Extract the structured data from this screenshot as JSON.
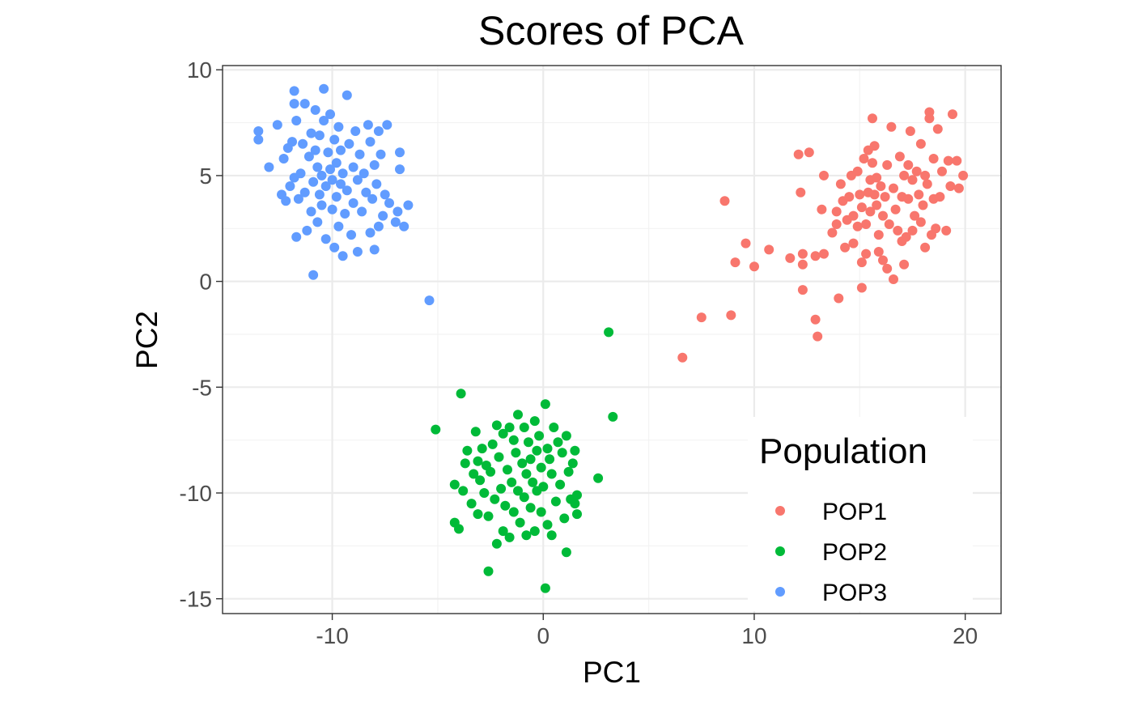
{
  "chart_data": {
    "type": "scatter",
    "title": "Scores of PCA",
    "xlabel": "PC1",
    "ylabel": "PC2",
    "xlim": [
      -15.2,
      21.7
    ],
    "ylim": [
      -15.7,
      10.2
    ],
    "x_ticks": [
      -10,
      0,
      10,
      20
    ],
    "x_tick_labels": [
      "-10",
      "0",
      "10",
      "20"
    ],
    "y_ticks": [
      10,
      5,
      0,
      -5,
      -10,
      -15
    ],
    "y_tick_labels": [
      "10",
      "5",
      "0",
      "-5",
      "-10",
      "-15"
    ],
    "grid": true,
    "legend": {
      "title": "Population",
      "position": "bottom-right-inside"
    },
    "series": [
      {
        "name": "POP1",
        "color": "#F8766D",
        "points": [
          [
            6.6,
            -3.6
          ],
          [
            7.5,
            -1.7
          ],
          [
            8.9,
            -1.6
          ],
          [
            8.6,
            3.8
          ],
          [
            9.1,
            0.9
          ],
          [
            9.6,
            1.8
          ],
          [
            10.0,
            0.7
          ],
          [
            10.7,
            1.5
          ],
          [
            11.7,
            1.1
          ],
          [
            12.1,
            6.0
          ],
          [
            12.2,
            4.2
          ],
          [
            12.3,
            1.3
          ],
          [
            12.3,
            0.8
          ],
          [
            12.3,
            -0.4
          ],
          [
            12.6,
            6.1
          ],
          [
            12.9,
            1.2
          ],
          [
            12.9,
            -1.8
          ],
          [
            13.0,
            -2.6
          ],
          [
            13.2,
            3.4
          ],
          [
            13.3,
            5.0
          ],
          [
            13.3,
            1.3
          ],
          [
            13.7,
            2.3
          ],
          [
            13.9,
            3.3
          ],
          [
            13.9,
            2.7
          ],
          [
            14.0,
            -0.8
          ],
          [
            14.1,
            4.6
          ],
          [
            14.2,
            3.8
          ],
          [
            14.3,
            1.6
          ],
          [
            14.4,
            2.9
          ],
          [
            14.5,
            4.0
          ],
          [
            14.6,
            5.0
          ],
          [
            14.7,
            3.1
          ],
          [
            14.7,
            1.8
          ],
          [
            14.9,
            5.2
          ],
          [
            14.9,
            2.6
          ],
          [
            15.0,
            4.1
          ],
          [
            15.1,
            3.5
          ],
          [
            15.1,
            0.9
          ],
          [
            15.1,
            -0.3
          ],
          [
            15.2,
            5.8
          ],
          [
            15.3,
            1.3
          ],
          [
            15.3,
            2.7
          ],
          [
            15.4,
            6.2
          ],
          [
            15.4,
            4.2
          ],
          [
            15.5,
            3.3
          ],
          [
            15.5,
            4.8
          ],
          [
            15.6,
            7.7
          ],
          [
            15.6,
            5.6
          ],
          [
            15.7,
            4.1
          ],
          [
            15.7,
            6.4
          ],
          [
            15.8,
            3.6
          ],
          [
            15.8,
            4.9
          ],
          [
            15.9,
            2.2
          ],
          [
            15.9,
            1.4
          ],
          [
            16.0,
            4.5
          ],
          [
            16.1,
            3.1
          ],
          [
            16.1,
            1.0
          ],
          [
            16.2,
            4.0
          ],
          [
            16.3,
            5.5
          ],
          [
            16.3,
            0.6
          ],
          [
            16.4,
            2.7
          ],
          [
            16.5,
            7.3
          ],
          [
            16.6,
            4.4
          ],
          [
            16.6,
            0.1
          ],
          [
            16.7,
            3.4
          ],
          [
            16.8,
            2.4
          ],
          [
            16.9,
            5.9
          ],
          [
            17.0,
            4.0
          ],
          [
            17.0,
            1.9
          ],
          [
            17.1,
            5.0
          ],
          [
            17.1,
            0.8
          ],
          [
            17.2,
            2.1
          ],
          [
            17.3,
            3.9
          ],
          [
            17.3,
            5.5
          ],
          [
            17.4,
            7.1
          ],
          [
            17.5,
            2.4
          ],
          [
            17.5,
            4.8
          ],
          [
            17.6,
            3.1
          ],
          [
            17.7,
            5.2
          ],
          [
            17.8,
            4.1
          ],
          [
            17.9,
            2.8
          ],
          [
            17.9,
            6.5
          ],
          [
            18.0,
            3.6
          ],
          [
            18.1,
            1.6
          ],
          [
            18.1,
            5.0
          ],
          [
            18.2,
            4.6
          ],
          [
            18.3,
            7.7
          ],
          [
            18.3,
            8.0
          ],
          [
            18.4,
            2.2
          ],
          [
            18.5,
            3.9
          ],
          [
            18.5,
            5.8
          ],
          [
            18.6,
            2.5
          ],
          [
            18.7,
            7.2
          ],
          [
            18.8,
            4.0
          ],
          [
            18.9,
            5.2
          ],
          [
            19.1,
            2.4
          ],
          [
            19.2,
            5.7
          ],
          [
            19.3,
            4.5
          ],
          [
            19.4,
            7.9
          ],
          [
            19.6,
            5.7
          ],
          [
            19.7,
            4.4
          ],
          [
            19.9,
            5.0
          ]
        ]
      },
      {
        "name": "POP2",
        "color": "#00BA38",
        "points": [
          [
            -5.1,
            -7.0
          ],
          [
            -3.9,
            -5.3
          ],
          [
            -4.2,
            -9.6
          ],
          [
            -4.2,
            -11.4
          ],
          [
            -4.0,
            -11.7
          ],
          [
            -3.8,
            -9.9
          ],
          [
            -3.7,
            -8.6
          ],
          [
            -3.6,
            -8.0
          ],
          [
            -3.4,
            -10.5
          ],
          [
            -3.3,
            -9.1
          ],
          [
            -3.2,
            -7.1
          ],
          [
            -3.1,
            -8.5
          ],
          [
            -3.1,
            -11.0
          ],
          [
            -3.0,
            -9.4
          ],
          [
            -2.9,
            -7.9
          ],
          [
            -2.8,
            -10.0
          ],
          [
            -2.7,
            -8.7
          ],
          [
            -2.6,
            -13.7
          ],
          [
            -2.6,
            -11.1
          ],
          [
            -2.5,
            -9.0
          ],
          [
            -2.4,
            -7.7
          ],
          [
            -2.3,
            -10.3
          ],
          [
            -2.2,
            -12.4
          ],
          [
            -2.2,
            -6.8
          ],
          [
            -2.1,
            -8.3
          ],
          [
            -2.0,
            -9.8
          ],
          [
            -1.9,
            -11.8
          ],
          [
            -1.9,
            -7.2
          ],
          [
            -1.8,
            -10.6
          ],
          [
            -1.7,
            -8.9
          ],
          [
            -1.6,
            -6.9
          ],
          [
            -1.6,
            -12.1
          ],
          [
            -1.5,
            -9.5
          ],
          [
            -1.4,
            -7.5
          ],
          [
            -1.4,
            -10.9
          ],
          [
            -1.3,
            -8.1
          ],
          [
            -1.2,
            -6.3
          ],
          [
            -1.2,
            -9.9
          ],
          [
            -1.1,
            -11.4
          ],
          [
            -1.0,
            -8.6
          ],
          [
            -0.9,
            -6.9
          ],
          [
            -0.9,
            -10.2
          ],
          [
            -0.8,
            -9.1
          ],
          [
            -0.8,
            -12.0
          ],
          [
            -0.7,
            -7.6
          ],
          [
            -0.6,
            -8.4
          ],
          [
            -0.6,
            -10.7
          ],
          [
            -0.5,
            -9.5
          ],
          [
            -0.4,
            -6.6
          ],
          [
            -0.4,
            -11.8
          ],
          [
            -0.3,
            -8.0
          ],
          [
            -0.3,
            -9.9
          ],
          [
            -0.2,
            -7.3
          ],
          [
            -0.1,
            -10.9
          ],
          [
            -0.1,
            -8.8
          ],
          [
            0.0,
            -9.7
          ],
          [
            0.1,
            -14.5
          ],
          [
            0.1,
            -5.8
          ],
          [
            0.2,
            -7.9
          ],
          [
            0.2,
            -11.5
          ],
          [
            0.3,
            -8.4
          ],
          [
            0.4,
            -9.1
          ],
          [
            0.4,
            -12.0
          ],
          [
            0.5,
            -6.9
          ],
          [
            0.6,
            -10.4
          ],
          [
            0.7,
            -7.6
          ],
          [
            0.8,
            -9.6
          ],
          [
            0.9,
            -8.1
          ],
          [
            1.0,
            -11.2
          ],
          [
            1.1,
            -12.8
          ],
          [
            1.1,
            -7.3
          ],
          [
            1.2,
            -9.0
          ],
          [
            1.3,
            -10.3
          ],
          [
            1.4,
            -8.6
          ],
          [
            1.5,
            -8.0
          ],
          [
            1.5,
            -10.5
          ],
          [
            1.6,
            -11.0
          ],
          [
            1.6,
            -10.1
          ],
          [
            2.6,
            -9.3
          ],
          [
            3.1,
            -2.4
          ],
          [
            3.3,
            -6.4
          ]
        ]
      },
      {
        "name": "POP3",
        "color": "#619CFF",
        "points": [
          [
            -13.5,
            7.1
          ],
          [
            -13.5,
            6.7
          ],
          [
            -13.0,
            5.4
          ],
          [
            -12.6,
            7.4
          ],
          [
            -12.4,
            4.1
          ],
          [
            -12.3,
            5.8
          ],
          [
            -12.2,
            3.8
          ],
          [
            -12.1,
            6.3
          ],
          [
            -12.0,
            4.5
          ],
          [
            -11.9,
            6.6
          ],
          [
            -11.8,
            9.0
          ],
          [
            -11.8,
            4.9
          ],
          [
            -11.8,
            8.4
          ],
          [
            -11.7,
            2.1
          ],
          [
            -11.7,
            7.6
          ],
          [
            -11.6,
            3.9
          ],
          [
            -11.5,
            5.1
          ],
          [
            -11.4,
            6.5
          ],
          [
            -11.3,
            8.4
          ],
          [
            -11.3,
            4.2
          ],
          [
            -11.2,
            2.4
          ],
          [
            -11.1,
            5.9
          ],
          [
            -11.0,
            7.0
          ],
          [
            -11.0,
            3.3
          ],
          [
            -10.9,
            4.7
          ],
          [
            -10.9,
            0.3
          ],
          [
            -10.8,
            6.2
          ],
          [
            -10.8,
            8.1
          ],
          [
            -10.7,
            5.4
          ],
          [
            -10.7,
            2.8
          ],
          [
            -10.6,
            4.1
          ],
          [
            -10.6,
            6.9
          ],
          [
            -10.5,
            5.0
          ],
          [
            -10.5,
            3.6
          ],
          [
            -10.4,
            7.6
          ],
          [
            -10.4,
            9.1
          ],
          [
            -10.3,
            4.5
          ],
          [
            -10.3,
            2.0
          ],
          [
            -10.2,
            6.1
          ],
          [
            -10.1,
            5.3
          ],
          [
            -10.1,
            7.9
          ],
          [
            -10.0,
            3.4
          ],
          [
            -10.0,
            4.8
          ],
          [
            -9.9,
            6.7
          ],
          [
            -9.9,
            1.6
          ],
          [
            -9.8,
            5.6
          ],
          [
            -9.8,
            4.0
          ],
          [
            -9.7,
            7.3
          ],
          [
            -9.7,
            2.6
          ],
          [
            -9.6,
            4.6
          ],
          [
            -9.6,
            6.2
          ],
          [
            -9.5,
            1.2
          ],
          [
            -9.5,
            5.1
          ],
          [
            -9.4,
            3.2
          ],
          [
            -9.3,
            8.8
          ],
          [
            -9.3,
            4.3
          ],
          [
            -9.2,
            6.5
          ],
          [
            -9.1,
            2.2
          ],
          [
            -9.0,
            5.4
          ],
          [
            -9.0,
            3.7
          ],
          [
            -8.9,
            7.1
          ],
          [
            -8.8,
            1.4
          ],
          [
            -8.8,
            4.8
          ],
          [
            -8.7,
            6.0
          ],
          [
            -8.6,
            3.3
          ],
          [
            -8.5,
            5.1
          ],
          [
            -8.4,
            4.2
          ],
          [
            -8.3,
            7.4
          ],
          [
            -8.2,
            2.3
          ],
          [
            -8.2,
            6.6
          ],
          [
            -8.1,
            3.9
          ],
          [
            -8.0,
            1.5
          ],
          [
            -8.0,
            5.5
          ],
          [
            -7.9,
            4.6
          ],
          [
            -7.8,
            7.1
          ],
          [
            -7.8,
            2.6
          ],
          [
            -7.7,
            6.0
          ],
          [
            -7.6,
            3.1
          ],
          [
            -7.5,
            4.1
          ],
          [
            -7.4,
            7.4
          ],
          [
            -7.3,
            3.7
          ],
          [
            -7.0,
            2.8
          ],
          [
            -6.9,
            3.3
          ],
          [
            -6.8,
            6.1
          ],
          [
            -6.8,
            5.3
          ],
          [
            -6.6,
            2.6
          ],
          [
            -6.4,
            3.6
          ],
          [
            -5.4,
            -0.9
          ]
        ]
      }
    ]
  }
}
